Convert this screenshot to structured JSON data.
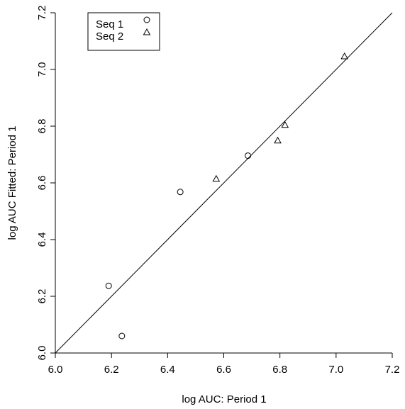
{
  "chart_data": {
    "type": "scatter",
    "xlabel": "log AUC: Period 1",
    "ylabel": "log AUC Fitted: Period 1",
    "xlim": [
      6.0,
      7.2
    ],
    "ylim": [
      6.0,
      7.2
    ],
    "x_ticks": [
      "6.0",
      "6.2",
      "6.4",
      "6.6",
      "6.8",
      "7.0",
      "7.2"
    ],
    "y_ticks": [
      "6.0",
      "6.2",
      "6.4",
      "6.6",
      "6.8",
      "7.0",
      "7.2"
    ],
    "reference_line": "identity",
    "grid": false,
    "legend_position": "top-left",
    "series": [
      {
        "name": "Seq 1",
        "marker": "circle",
        "points": [
          {
            "x": 6.19,
            "y": 6.237
          },
          {
            "x": 6.237,
            "y": 6.06
          },
          {
            "x": 6.445,
            "y": 6.568
          },
          {
            "x": 6.686,
            "y": 6.696
          }
        ]
      },
      {
        "name": "Seq 2",
        "marker": "triangle",
        "points": [
          {
            "x": 6.573,
            "y": 6.613
          },
          {
            "x": 6.792,
            "y": 6.748
          },
          {
            "x": 6.818,
            "y": 6.803
          },
          {
            "x": 7.03,
            "y": 7.045
          }
        ]
      }
    ],
    "colors": {
      "ink": "#000000",
      "background": "#ffffff"
    }
  }
}
